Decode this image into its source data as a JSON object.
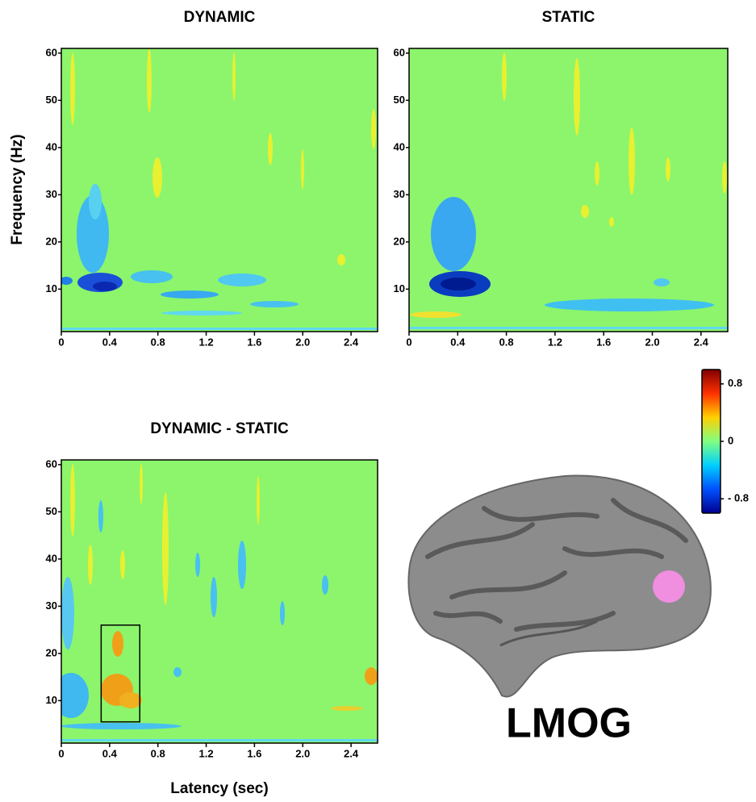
{
  "chart_data": [
    {
      "type": "heatmap",
      "title": "DYNAMIC",
      "y_label": "Frequency (Hz)",
      "xlim": [
        0,
        2.62
      ],
      "ylim": [
        1,
        61
      ],
      "xticks": [
        0,
        0.4,
        0.8,
        1.2,
        1.6,
        {
          "value": 2,
          "label": "2.0"
        },
        2.4
      ],
      "yticks": [
        10,
        20,
        30,
        40,
        50,
        60
      ]
    },
    {
      "type": "heatmap",
      "title": "STATIC",
      "xlim": [
        0,
        2.62
      ],
      "ylim": [
        1,
        61
      ],
      "xticks": [
        0,
        0.4,
        0.8,
        1.2,
        1.6,
        {
          "value": 2,
          "label": "2.0"
        },
        2.4
      ],
      "yticks": [
        10,
        20,
        30,
        40,
        50,
        60
      ]
    },
    {
      "type": "heatmap",
      "title": "DYNAMIC - STATIC",
      "x_label": "Latency (sec)",
      "xlim": [
        0,
        2.62
      ],
      "ylim": [
        1,
        61
      ],
      "xticks": [
        0,
        0.4,
        0.8,
        1.2,
        1.6,
        {
          "value": 2,
          "label": "2.0"
        },
        2.4
      ],
      "yticks": [
        10,
        20,
        30,
        40,
        50,
        60
      ],
      "highlight_box": {
        "x": [
          0.33,
          0.65
        ],
        "y": [
          5.5,
          26
        ]
      }
    },
    {
      "type": "colorbar",
      "ylim": [
        -1,
        1
      ],
      "yticks": [
        {
          "value": -0.8,
          "label": "- 0.8"
        },
        0,
        0.8
      ],
      "colors": [
        "#00008f",
        "#0050ff",
        "#00d0ff",
        "#80ff80",
        "#ffd000",
        "#ff3000",
        "#800000"
      ]
    }
  ],
  "brain": {
    "label": "LMOG"
  }
}
